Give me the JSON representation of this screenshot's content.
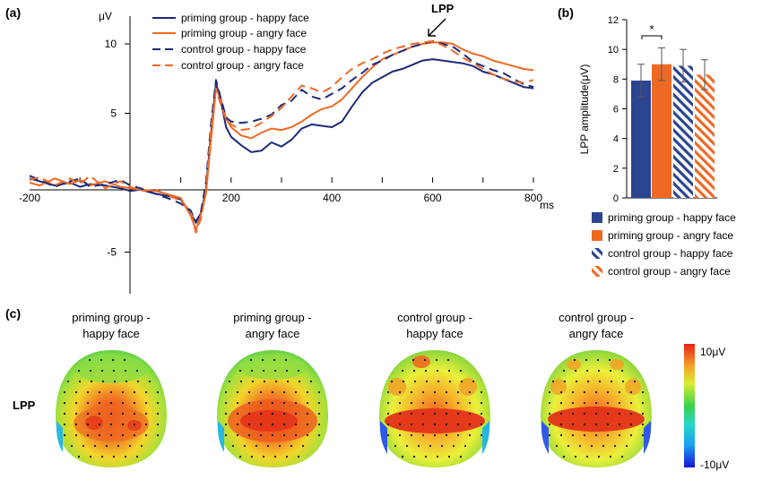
{
  "colors": {
    "priming": "#1c2a7a",
    "priming_bar": "#2b4590",
    "angry": "#ee6a24",
    "axis": "#000000"
  },
  "panel_labels": [
    "(a)",
    "(b)",
    "(c)"
  ],
  "chart_data": [
    {
      "type": "line",
      "panel": "(a)",
      "xlabel": "ms",
      "ylabel": "μV",
      "xlim": [
        -200,
        800
      ],
      "ylim": [
        -8,
        12
      ],
      "x_ticks": [
        -200,
        200,
        400,
        600,
        800
      ],
      "x_tick_labels": [
        "-200",
        "200",
        "400",
        "600",
        "800"
      ],
      "y_ticks": [
        -5,
        5,
        10
      ],
      "y_tick_labels": [
        "-5",
        "5",
        "10"
      ],
      "annotation": "LPP",
      "annotation_at": [
        610,
        10.3
      ],
      "legend": "top-left",
      "series": [
        {
          "name": "priming group - happy face",
          "style": "solid",
          "color": "#1c2a7a",
          "x": [
            -200,
            -180,
            -150,
            -120,
            -100,
            -80,
            -50,
            -20,
            0,
            20,
            50,
            80,
            100,
            120,
            130,
            140,
            150,
            160,
            170,
            180,
            190,
            200,
            220,
            240,
            260,
            280,
            300,
            320,
            340,
            360,
            380,
            400,
            420,
            440,
            460,
            480,
            500,
            520,
            540,
            560,
            580,
            600,
            620,
            640,
            660,
            680,
            700,
            720,
            740,
            760,
            780,
            800
          ],
          "y": [
            0.3,
            0.1,
            -0.2,
            0.0,
            -0.3,
            -0.1,
            -0.2,
            -0.4,
            -0.6,
            -0.5,
            -0.8,
            -1.0,
            -1.2,
            -2.3,
            -2.8,
            -2.2,
            -0.5,
            3.5,
            7.2,
            5.8,
            4.0,
            3.3,
            2.7,
            2.2,
            2.3,
            2.9,
            2.6,
            3.1,
            3.9,
            4.2,
            4.1,
            4.0,
            4.4,
            5.5,
            6.5,
            7.2,
            7.6,
            8.0,
            8.2,
            8.5,
            8.8,
            8.9,
            8.8,
            8.7,
            8.6,
            8.4,
            8.0,
            7.8,
            7.5,
            7.2,
            6.9,
            6.8
          ]
        },
        {
          "name": "priming group - angry face",
          "style": "solid",
          "color": "#ee6a24",
          "x": [
            -200,
            -180,
            -150,
            -120,
            -100,
            -80,
            -50,
            -20,
            0,
            20,
            50,
            80,
            100,
            120,
            130,
            140,
            150,
            160,
            170,
            180,
            190,
            200,
            220,
            240,
            260,
            280,
            300,
            320,
            340,
            360,
            380,
            400,
            420,
            440,
            460,
            480,
            500,
            520,
            540,
            560,
            580,
            600,
            620,
            640,
            660,
            680,
            700,
            720,
            740,
            760,
            780,
            800
          ],
          "y": [
            0.0,
            -0.2,
            0.3,
            -0.1,
            0.2,
            -0.2,
            0.1,
            -0.3,
            -0.4,
            -0.5,
            -0.6,
            -0.9,
            -1.1,
            -2.4,
            -3.4,
            -2.3,
            -0.8,
            3.0,
            6.8,
            6.0,
            4.6,
            4.0,
            3.4,
            3.2,
            3.6,
            3.9,
            3.8,
            4.0,
            4.4,
            4.9,
            5.3,
            5.5,
            6.0,
            6.8,
            7.6,
            8.3,
            8.9,
            9.2,
            9.5,
            9.8,
            10.0,
            10.1,
            10.1,
            10.0,
            9.6,
            9.3,
            9.1,
            8.8,
            8.6,
            8.4,
            8.2,
            8.1
          ]
        },
        {
          "name": "control group - happy face",
          "style": "dashed",
          "color": "#1c2a7a",
          "x": [
            -200,
            -180,
            -150,
            -120,
            -100,
            -80,
            -50,
            -20,
            0,
            20,
            50,
            80,
            100,
            120,
            130,
            140,
            150,
            160,
            170,
            180,
            190,
            200,
            220,
            240,
            260,
            280,
            300,
            320,
            340,
            360,
            380,
            400,
            420,
            440,
            460,
            480,
            500,
            520,
            540,
            560,
            580,
            600,
            620,
            640,
            660,
            680,
            700,
            720,
            740,
            760,
            780,
            800
          ],
          "y": [
            0.5,
            0.2,
            -0.3,
            0.1,
            0.3,
            -0.3,
            -0.1,
            0.2,
            -0.2,
            -0.4,
            -0.8,
            -1.2,
            -1.5,
            -2.0,
            -2.9,
            -2.1,
            0.0,
            4.2,
            7.4,
            6.0,
            4.7,
            4.4,
            4.3,
            4.4,
            4.6,
            4.9,
            5.6,
            5.9,
            6.7,
            6.2,
            6.0,
            6.4,
            6.8,
            7.4,
            7.9,
            8.5,
            8.8,
            9.2,
            9.5,
            9.8,
            10.0,
            10.2,
            10.0,
            9.8,
            9.3,
            8.7,
            8.4,
            8.1,
            7.9,
            7.5,
            7.1,
            6.9
          ]
        },
        {
          "name": "control group - angry face",
          "style": "dashed",
          "color": "#ee6a24",
          "x": [
            -200,
            -180,
            -150,
            -120,
            -100,
            -80,
            -50,
            -20,
            0,
            20,
            50,
            80,
            100,
            120,
            130,
            140,
            150,
            160,
            170,
            180,
            190,
            200,
            220,
            240,
            260,
            280,
            300,
            320,
            340,
            360,
            380,
            400,
            420,
            440,
            460,
            480,
            500,
            520,
            540,
            560,
            580,
            600,
            620,
            640,
            660,
            680,
            700,
            720,
            740,
            760,
            780,
            800
          ],
          "y": [
            0.2,
            0.4,
            -0.2,
            0.3,
            -0.1,
            0.5,
            -0.4,
            0.1,
            -0.3,
            -0.6,
            -0.5,
            -1.0,
            -1.3,
            -2.1,
            -3.6,
            -2.6,
            -0.6,
            3.8,
            6.7,
            5.6,
            4.5,
            4.2,
            3.8,
            3.9,
            4.3,
            4.8,
            5.4,
            6.2,
            7.0,
            6.8,
            6.5,
            6.9,
            7.6,
            8.2,
            8.6,
            8.9,
            9.3,
            9.6,
            9.8,
            10.0,
            10.1,
            10.2,
            9.9,
            9.5,
            9.0,
            8.6,
            8.2,
            7.8,
            7.5,
            7.3,
            7.2,
            7.4
          ]
        }
      ]
    },
    {
      "type": "bar",
      "panel": "(b)",
      "ylabel": "LPP amplitude(μV)",
      "ylim": [
        0,
        12
      ],
      "y_ticks": [
        0,
        2,
        4,
        6,
        8,
        10,
        12
      ],
      "significance": "*",
      "legend": "bottom",
      "categories": [
        "priming group - happy face",
        "priming group - angry face",
        "control group - happy face",
        "control group - angry face"
      ],
      "values": [
        7.9,
        9.0,
        8.9,
        8.3
      ],
      "errors": [
        1.1,
        1.1,
        1.1,
        1.0
      ],
      "fills": [
        "solid",
        "solid",
        "hatched",
        "hatched"
      ],
      "bar_colors": [
        "#2b4590",
        "#ee6a24",
        "#2b4590",
        "#ee6a24"
      ]
    },
    {
      "type": "heatmap",
      "panel": "(c)",
      "row_label": "LPP",
      "map_titles": [
        [
          "priming group -",
          "happy face"
        ],
        [
          "priming group -",
          "angry face"
        ],
        [
          "control group -",
          "happy face"
        ],
        [
          "control group -",
          "angry face"
        ]
      ],
      "colorbar_max": "10μV",
      "colorbar_min": "-10μV"
    }
  ]
}
